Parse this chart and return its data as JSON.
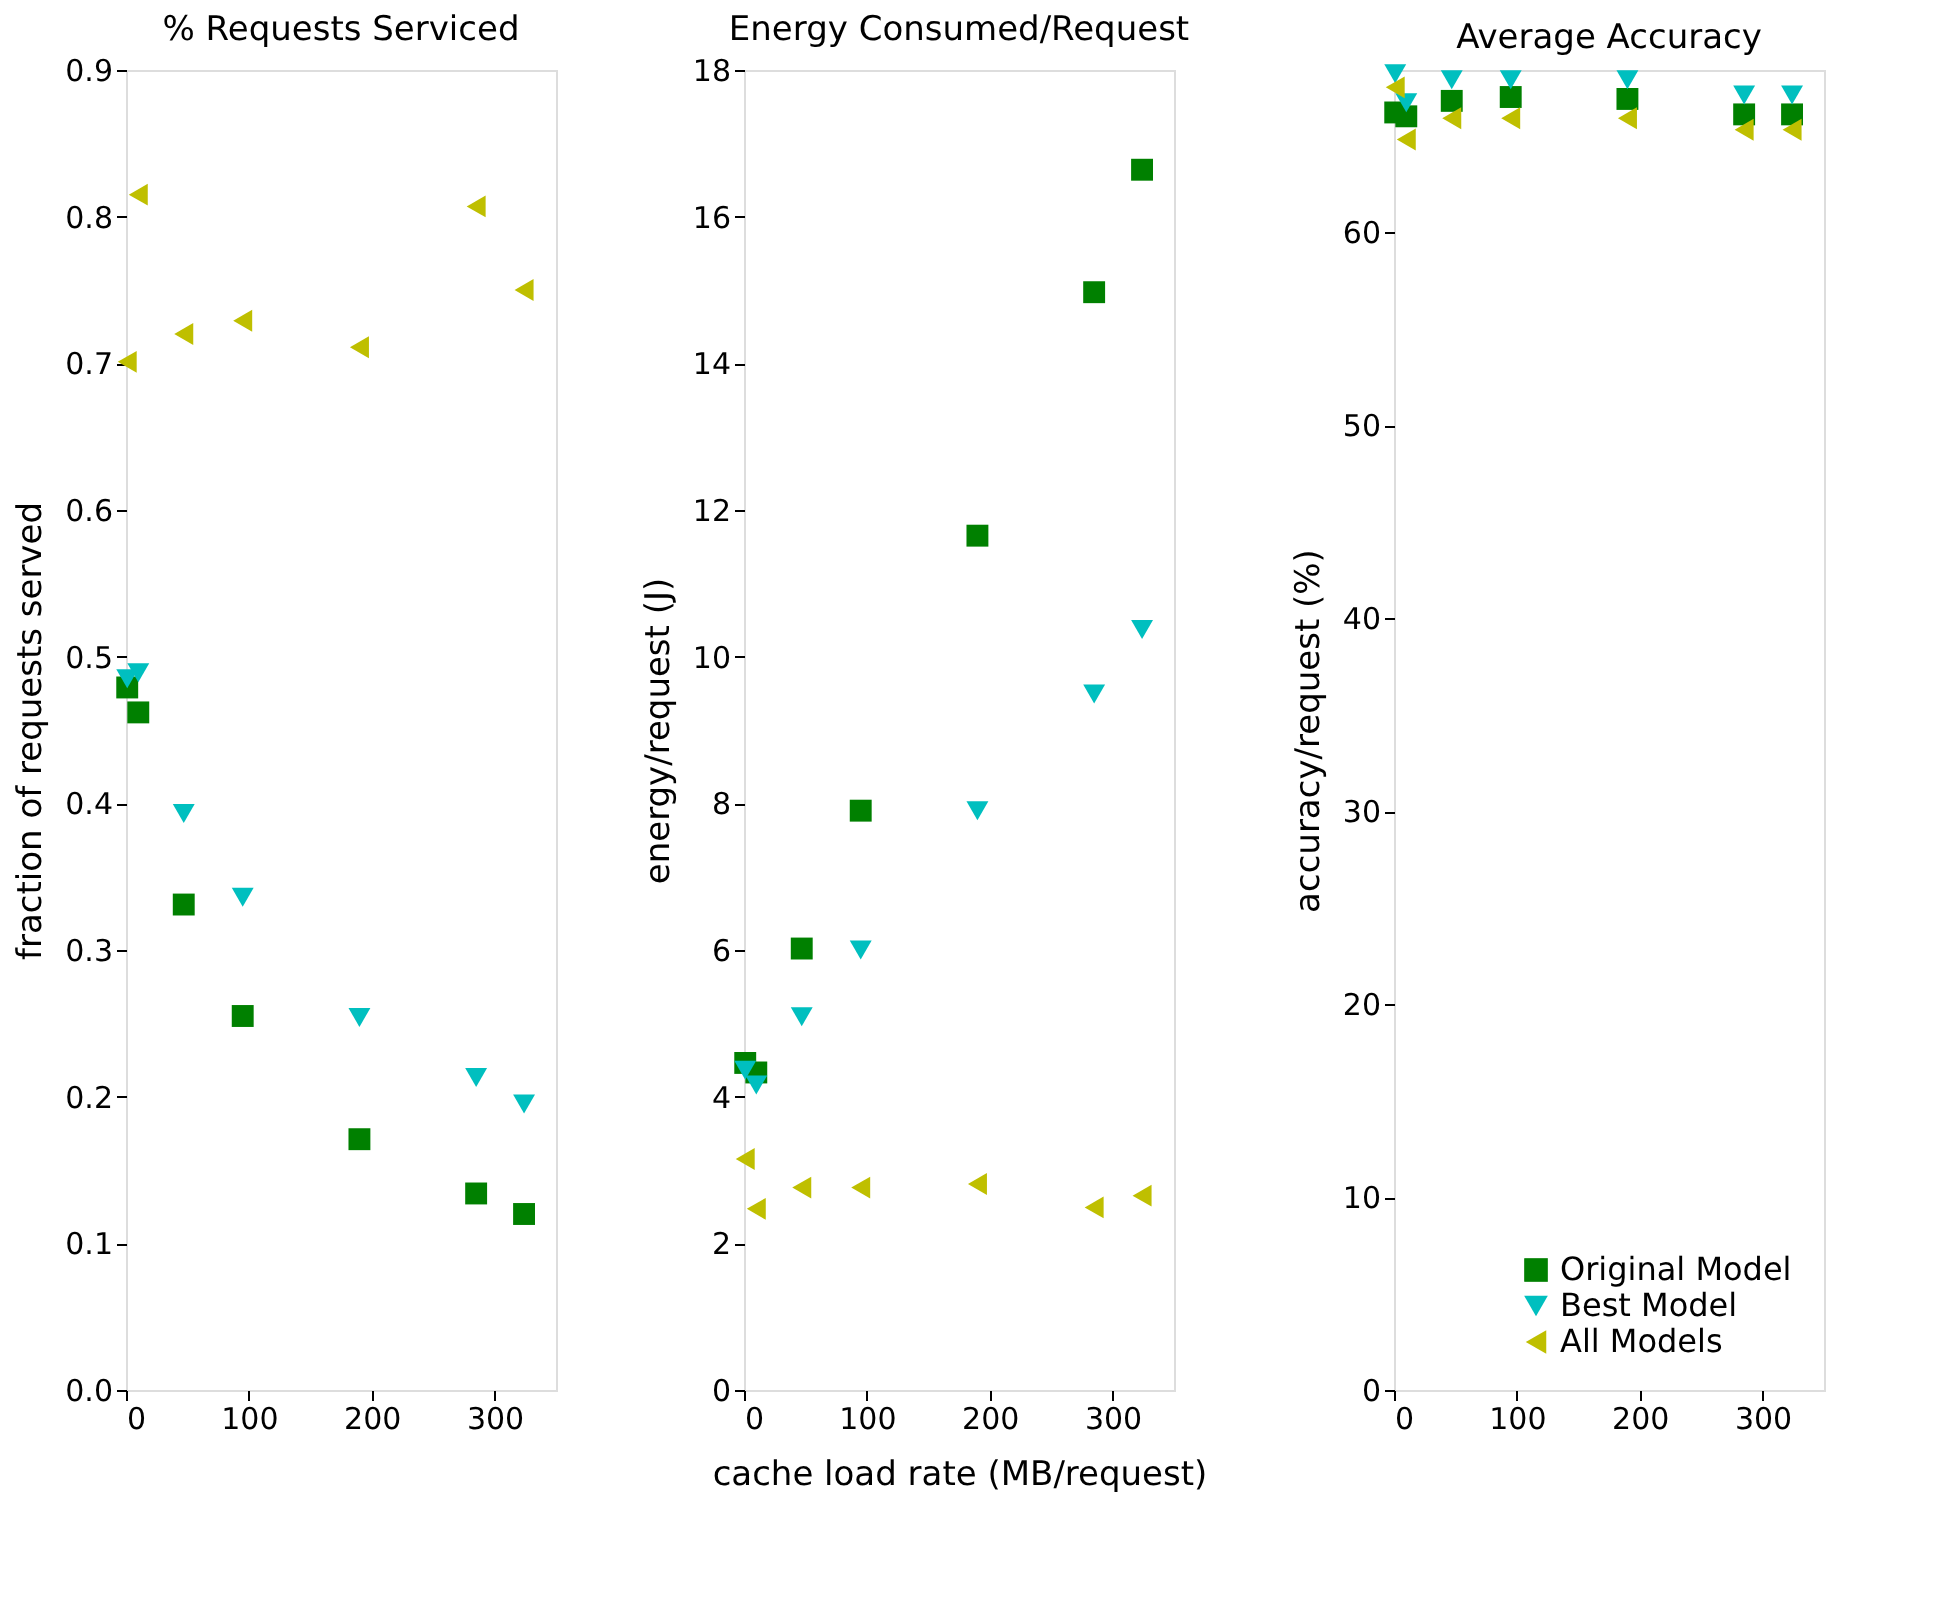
{
  "chart_data": [
    {
      "type": "scatter",
      "title": "% Requests Serviced",
      "ylabel": "fraction of requests served",
      "xlim": [
        0,
        350
      ],
      "xticks": [
        0,
        100,
        200,
        300
      ],
      "ylim": [
        0,
        0.9
      ],
      "yticks": [
        {
          "value": 0,
          "label": "0.0"
        },
        0.1,
        0.2,
        0.3,
        0.4,
        0.5,
        0.6,
        0.7,
        0.8,
        0.9
      ],
      "grid": false,
      "legend": false,
      "x": [
        1,
        10,
        47,
        95,
        190,
        285,
        324
      ],
      "series": [
        {
          "color": "#008000",
          "marker": "square",
          "values": [
            0.479,
            0.462,
            0.331,
            0.255,
            0.171,
            0.134,
            0.12
          ]
        },
        {
          "color": "#00bfbf",
          "marker": "triangle-down",
          "values": [
            0.485,
            0.489,
            0.393,
            0.336,
            0.254,
            0.213,
            0.195
          ]
        },
        {
          "color": "#bfbf00",
          "marker": "triangle-left",
          "values": [
            0.701,
            0.815,
            0.72,
            0.729,
            0.711,
            0.807,
            0.75
          ]
        }
      ]
    },
    {
      "type": "scatter",
      "title": "Energy Consumed/Request",
      "xlabel": "cache load rate (MB/request)",
      "ylabel": "energy/request (J)",
      "xlim": [
        0,
        350
      ],
      "xticks": [
        0,
        100,
        200,
        300
      ],
      "ylim": [
        0,
        18
      ],
      "yticks": [
        0,
        2,
        4,
        6,
        8,
        10,
        12,
        14,
        16,
        18
      ],
      "grid": false,
      "legend": false,
      "x": [
        1,
        10,
        47,
        95,
        190,
        285,
        324
      ],
      "series": [
        {
          "color": "#008000",
          "marker": "square",
          "values": [
            4.46,
            4.33,
            6.02,
            7.9,
            11.65,
            14.97,
            16.64
          ]
        },
        {
          "color": "#00bfbf",
          "marker": "triangle-down",
          "values": [
            4.36,
            4.16,
            5.09,
            6.0,
            7.9,
            9.49,
            10.37
          ]
        },
        {
          "color": "#bfbf00",
          "marker": "triangle-left",
          "values": [
            3.15,
            2.47,
            2.76,
            2.76,
            2.81,
            2.49,
            2.65
          ]
        }
      ]
    },
    {
      "type": "scatter",
      "title": "Average Accuracy",
      "ylabel": "accuracy/request (%)",
      "xlim": [
        0,
        350
      ],
      "xticks": [
        0,
        100,
        200,
        300
      ],
      "ylim": [
        0,
        68.4
      ],
      "yticks": [
        0,
        10,
        20,
        30,
        40,
        50,
        60
      ],
      "grid": false,
      "legend": "bottom right",
      "x": [
        1,
        10,
        47,
        95,
        190,
        285,
        324
      ],
      "series": [
        {
          "name": "Original Model",
          "color": "#008000",
          "marker": "square",
          "values": [
            66.2,
            66.0,
            66.8,
            67.0,
            66.9,
            66.1,
            66.1
          ]
        },
        {
          "name": "Best Model",
          "color": "#00bfbf",
          "marker": "triangle-down",
          "values": [
            68.2,
            66.7,
            67.9,
            67.9,
            67.9,
            67.1,
            67.1
          ]
        },
        {
          "name": "All Models",
          "color": "#bfbf00",
          "marker": "triangle-left",
          "values": [
            67.5,
            64.8,
            65.9,
            65.9,
            65.9,
            65.3,
            65.3
          ]
        }
      ]
    }
  ]
}
